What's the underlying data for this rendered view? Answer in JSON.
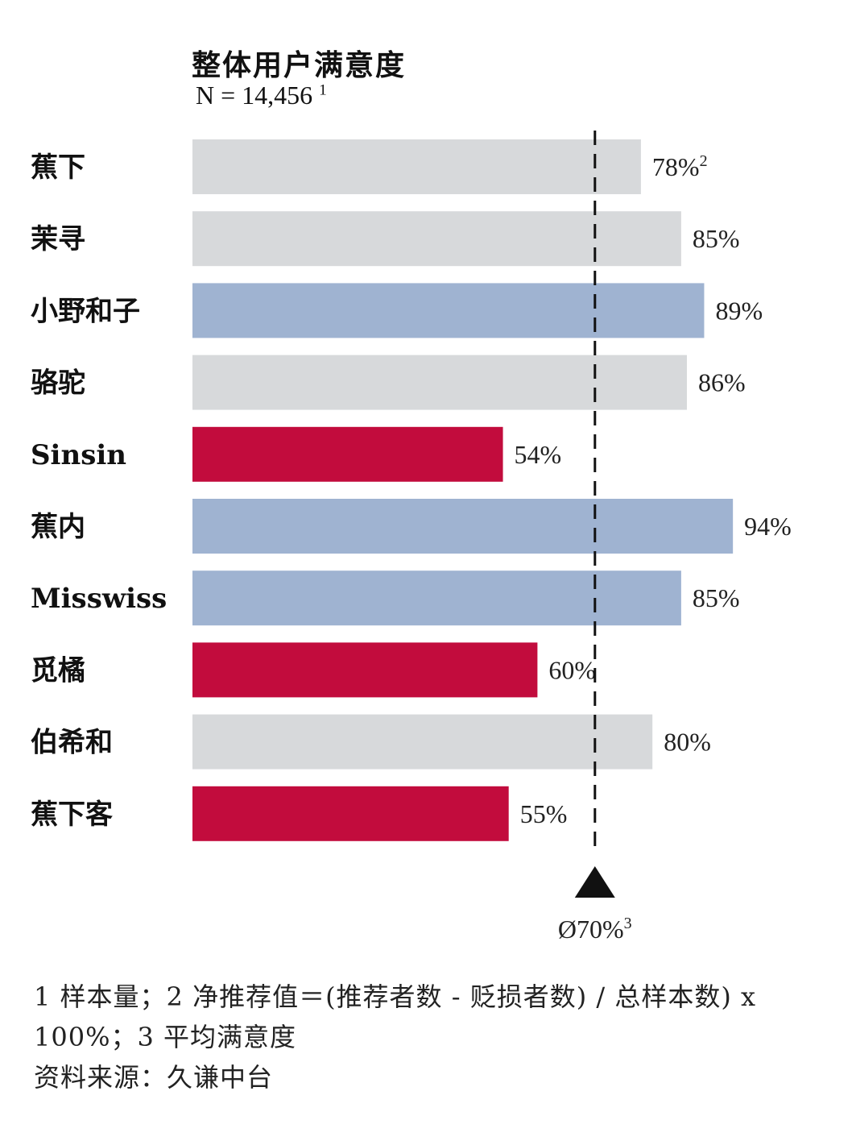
{
  "title": "整体用户满意度",
  "sample": "N = 14,456",
  "sample_sup": "1",
  "colors": {
    "gray": "#d7d9db",
    "blue": "#9fb3d1",
    "red": "#c20c3d",
    "avg_line": "#111111"
  },
  "chart_data": {
    "type": "bar",
    "orientation": "horizontal",
    "title": "整体用户满意度",
    "subtitle": "N = 14,456",
    "categories": [
      "蕉下",
      "茉寻",
      "小野和子",
      "骆驼",
      "Sinsin",
      "蕉内",
      "Misswiss",
      "觅橘",
      "伯希和",
      "蕉下客"
    ],
    "values": [
      78,
      85,
      89,
      86,
      54,
      94,
      85,
      60,
      80,
      55
    ],
    "value_labels": [
      "78%",
      "85%",
      "89%",
      "86%",
      "54%",
      "94%",
      "85%",
      "60%",
      "80%",
      "55%"
    ],
    "value_sups": [
      "2",
      "",
      "",
      "",
      "",
      "",
      "",
      "",
      "",
      ""
    ],
    "bar_colors": [
      "gray",
      "gray",
      "blue",
      "gray",
      "red",
      "blue",
      "blue",
      "red",
      "gray",
      "red"
    ],
    "xlim": [
      0,
      100
    ],
    "average": {
      "value": 70,
      "label": "Ø70%",
      "sup": "3"
    }
  },
  "footnotes": {
    "line1": "1 样本量；2 净推荐值＝(推荐者数 - 贬损者数) / 总样本数) x 100%；3 平均满意度",
    "source": "资料来源：久谦中台"
  }
}
